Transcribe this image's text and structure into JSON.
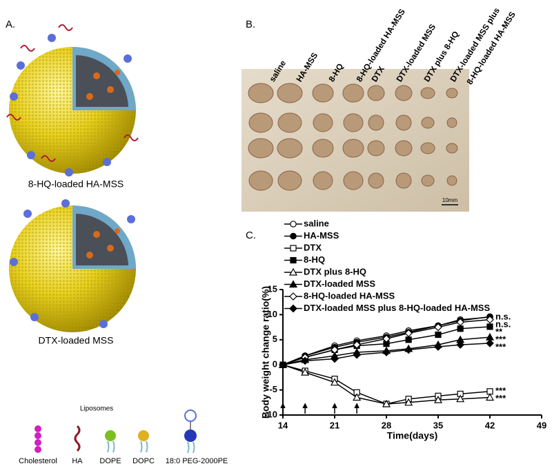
{
  "panel_a": {
    "label": "A.",
    "particles": [
      "8-HQ-loaded HA-MSS",
      "DTX-loaded MSS"
    ],
    "liposomes_title": "Liposomes",
    "components": [
      "Cholesterol",
      "HA",
      "DOPE",
      "DOPC",
      "18:0 PEG-2000PE"
    ]
  },
  "panel_b": {
    "label": "B.",
    "groups": [
      "saline",
      "HA-MSS",
      "8-HQ",
      "8-HQ-loaded HA-MSS",
      "DTX",
      "DTX-loaded MSS",
      "DTX plus 8-HQ",
      "DTX-loaded MSS plus",
      "8-HQ-loaded HA-MSS"
    ],
    "scale_bar": "10mm"
  },
  "chart_data": {
    "type": "line",
    "panel_label": "C.",
    "x_label": "Time(days)",
    "y_label": "Body weight change ratio(%)",
    "x": [
      14,
      17,
      21,
      24,
      28,
      31,
      35,
      38,
      42
    ],
    "xlim": [
      14,
      49
    ],
    "xticks": [
      14,
      21,
      28,
      35,
      42,
      49
    ],
    "ylim": [
      -10,
      15
    ],
    "yticks": [
      -10,
      -5,
      0,
      5,
      10,
      15
    ],
    "dose_days": [
      14,
      17,
      21,
      24
    ],
    "series": [
      {
        "name": "saline",
        "color": "#000000",
        "marker": "circle",
        "filled": false,
        "values": [
          0,
          1.8,
          3.8,
          4.8,
          5.8,
          6.8,
          7.8,
          9,
          9.5
        ],
        "significance": "n.s."
      },
      {
        "name": "HA-MSS",
        "color": "#000000",
        "marker": "circle",
        "filled": true,
        "values": [
          0,
          1.8,
          3.5,
          4.5,
          5.5,
          6.5,
          7.8,
          8.8,
          9.6
        ]
      },
      {
        "name": "DTX",
        "color": "#000000",
        "marker": "square",
        "filled": false,
        "values": [
          0,
          -1.2,
          -2.8,
          -5.5,
          -7.8,
          -6.8,
          -6.2,
          -5.8,
          -5.3
        ],
        "significance": "***"
      },
      {
        "name": "8-HQ",
        "color": "#000000",
        "marker": "square",
        "filled": true,
        "values": [
          0,
          1.5,
          3,
          3.8,
          4.2,
          5,
          6,
          7.2,
          7.6
        ],
        "significance": "**"
      },
      {
        "name": "DTX plus 8-HQ",
        "color": "#000000",
        "marker": "triangle",
        "filled": false,
        "values": [
          0,
          -1.5,
          -3.5,
          -6.5,
          -7.8,
          -7.5,
          -7,
          -6.8,
          -6.5
        ],
        "significance": "***"
      },
      {
        "name": "DTX-loaded MSS",
        "color": "#000000",
        "marker": "triangle",
        "filled": true,
        "values": [
          0,
          1,
          1.8,
          2.5,
          2.8,
          3.2,
          4,
          5,
          5.5
        ],
        "significance": "***"
      },
      {
        "name": "8-HQ-loaded HA-MSS",
        "color": "#000000",
        "marker": "diamond",
        "filled": false,
        "values": [
          0,
          1.5,
          3,
          4,
          5.2,
          6.3,
          7.5,
          8.5,
          9
        ],
        "significance": "n.s."
      },
      {
        "name": "DTX-loaded MSS plus 8-HQ-loaded HA-MSS",
        "color": "#000000",
        "marker": "diamond",
        "filled": true,
        "values": [
          0,
          0.8,
          1.2,
          2,
          2.5,
          3,
          3.6,
          4,
          4.3
        ],
        "significance": "***"
      }
    ]
  }
}
